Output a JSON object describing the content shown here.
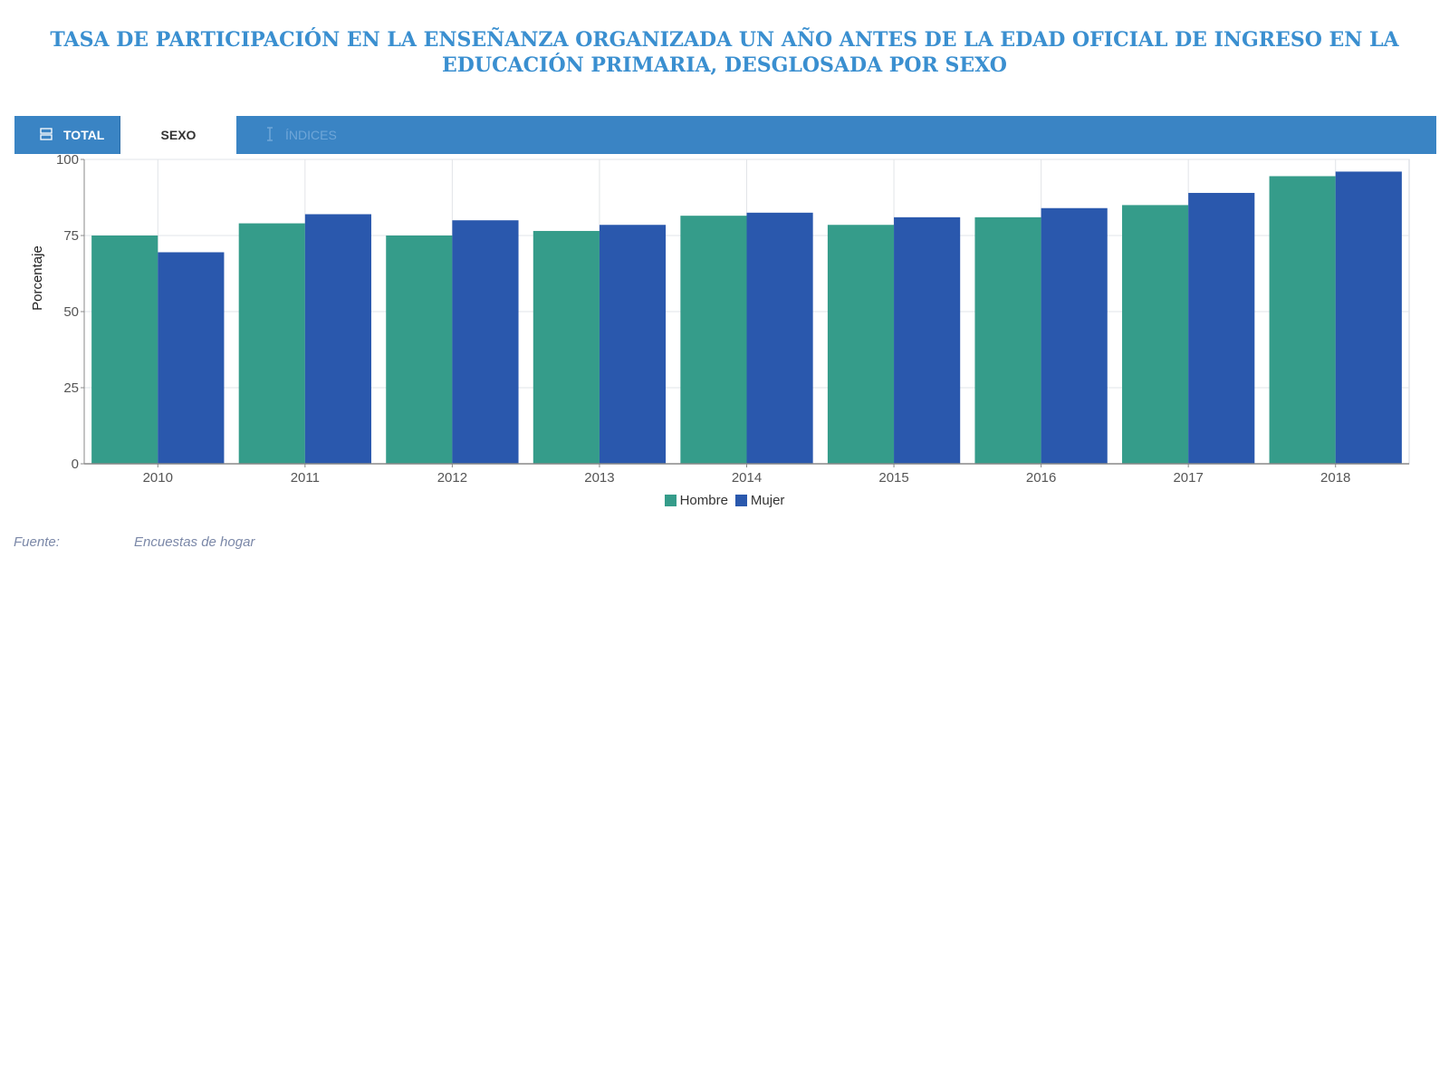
{
  "title": "TASA DE PARTICIPACIÓN EN LA ENSEÑANZA ORGANIZADA UN AÑO ANTES DE LA EDAD OFICIAL DE INGRESO EN LA EDUCACIÓN PRIMARIA, DESGLOSADA POR SEXO",
  "tabs": [
    {
      "label": "TOTAL",
      "icon": "table-icon",
      "active": false
    },
    {
      "label": "SEXO",
      "icon": "",
      "active": true
    },
    {
      "label": "ÍNDICES",
      "icon": "index-icon",
      "active": false
    }
  ],
  "footer": {
    "label": "Fuente:",
    "value": "Encuestas de hogar"
  },
  "colors": {
    "hombre": "#359c8a",
    "mujer": "#2a58ad",
    "title": "#3a8fd0",
    "tabbar": "#3a84c4"
  },
  "chart_data": {
    "type": "bar",
    "ylabel": "Porcentaje",
    "xlabel": "",
    "ylim": [
      0,
      100
    ],
    "yticks": [
      0,
      25,
      50,
      75,
      100
    ],
    "grid": true,
    "legend_position": "bottom",
    "categories": [
      "2010",
      "2011",
      "2012",
      "2013",
      "2014",
      "2015",
      "2016",
      "2017",
      "2018"
    ],
    "series": [
      {
        "name": "Hombre",
        "color": "#359c8a",
        "values": [
          75,
          79,
          75,
          76.5,
          81.5,
          78.5,
          81,
          85,
          94.5
        ]
      },
      {
        "name": "Mujer",
        "color": "#2a58ad",
        "values": [
          69.5,
          82,
          80,
          78.5,
          82.5,
          81,
          84,
          89,
          96
        ]
      }
    ]
  }
}
